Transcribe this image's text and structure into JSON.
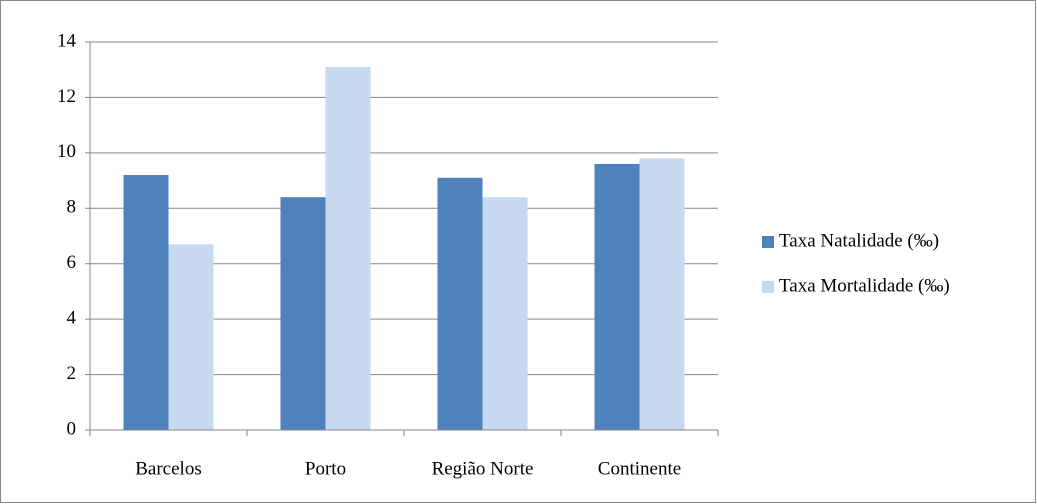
{
  "chart_data": {
    "type": "bar",
    "categories": [
      "Barcelos",
      "Porto",
      "Região Norte",
      "Continente"
    ],
    "series": [
      {
        "name": "Taxa Natalidade (‰)",
        "color": "#4f81bd",
        "values": [
          9.2,
          8.4,
          9.1,
          9.6
        ]
      },
      {
        "name": "Taxa Mortalidade (‰)",
        "color": "#c6d9f1",
        "values": [
          6.7,
          13.1,
          8.4,
          9.8
        ]
      }
    ],
    "ylim": [
      0,
      14
    ],
    "yticks": [
      0,
      2,
      4,
      6,
      8,
      10,
      12,
      14
    ],
    "grid": true,
    "legend": "right"
  }
}
